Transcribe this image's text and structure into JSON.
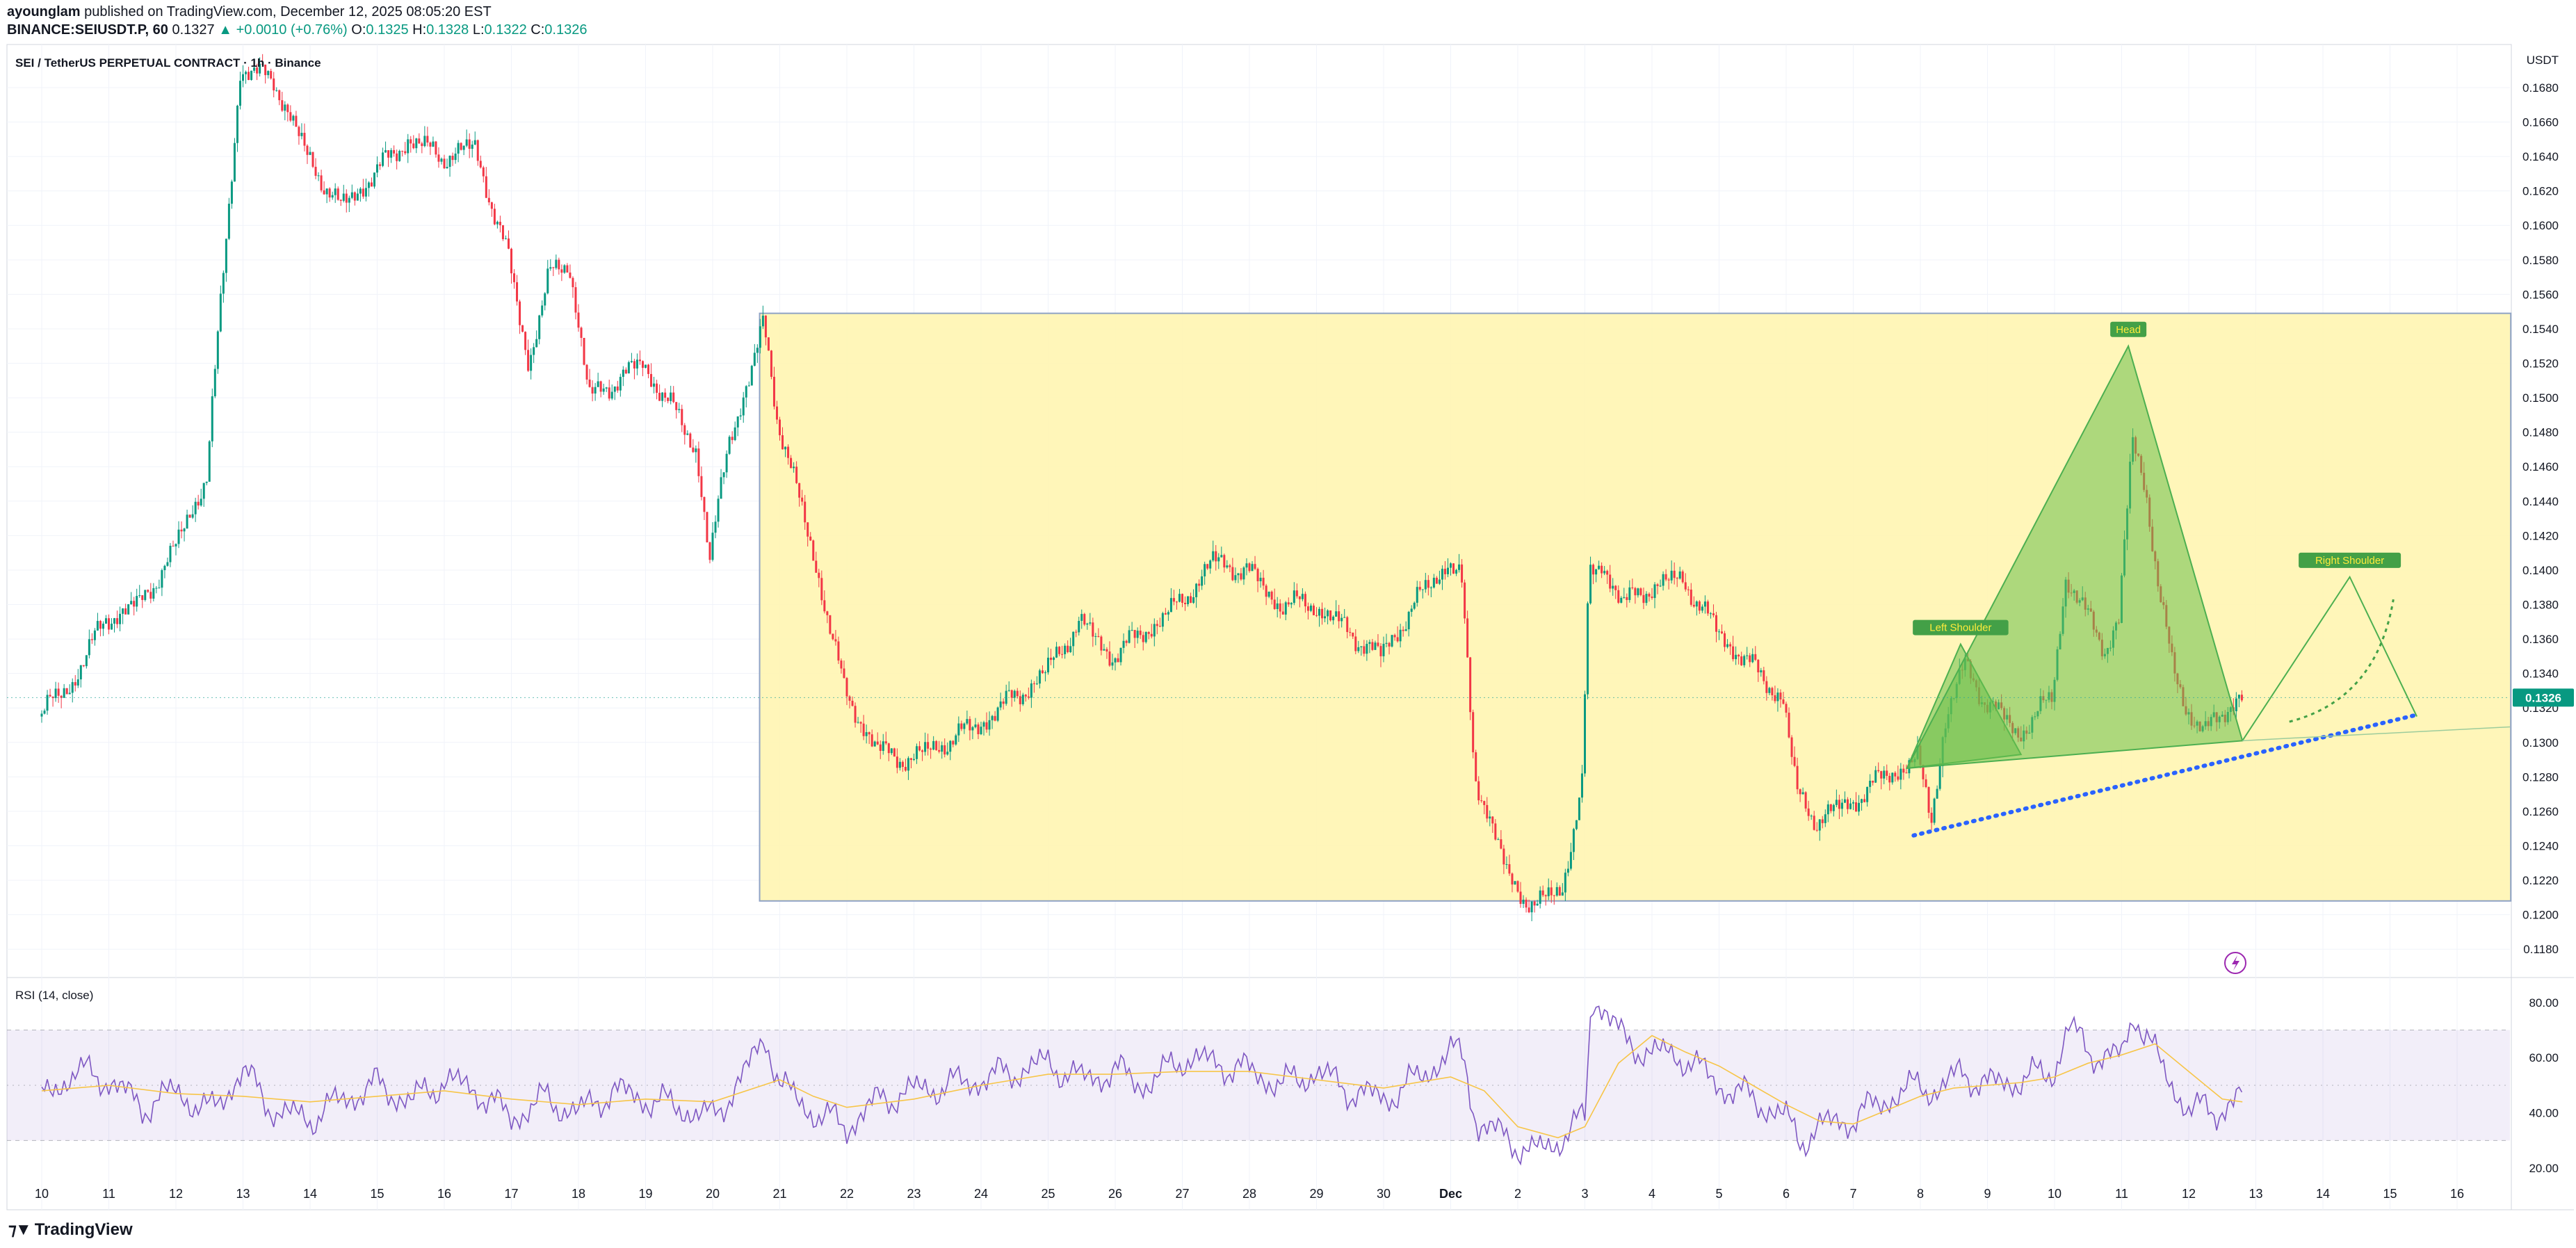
{
  "header": {
    "author": "ayounglam",
    "published_text": "published on TradingView.com, December 12, 2025 08:05:20 EST",
    "symbol": "BINANCE:SEIUSDT.P, 60",
    "last": "0.1327",
    "change": "+0.0010 (+0.76%)",
    "open_label": "O:",
    "open": "0.1325",
    "high_label": "H:",
    "high": "0.1328",
    "low_label": "L:",
    "low": "0.1322",
    "close_label": "C:",
    "close": "0.1326"
  },
  "legend": {
    "title": "SEI / TetherUS PERPETUAL CONTRACT · 1h · Binance"
  },
  "rsi_legend": {
    "title": "RSI (14, close)"
  },
  "footer": {
    "brand": "TradingView"
  },
  "colors": {
    "up": "#089981",
    "down": "#f23645",
    "rsi_line": "#7e57c2",
    "rsi_ma": "#f7c548",
    "range_box": "#fff5b1",
    "pattern_fill": "#6abf4b",
    "trendline": "#2962ff"
  },
  "chart_data": [
    {
      "type": "candlestick",
      "currency": "USDT",
      "ylim": [
        0.117,
        0.1705
      ],
      "y_ticks": [
        "0.1180",
        "0.1200",
        "0.1220",
        "0.1240",
        "0.1260",
        "0.1280",
        "0.1300",
        "0.1320",
        "0.1340",
        "0.1360",
        "0.1380",
        "0.1400",
        "0.1420",
        "0.1440",
        "0.1460",
        "0.1480",
        "0.1500",
        "0.1520",
        "0.1540",
        "0.1560",
        "0.1580",
        "0.1600",
        "0.1620",
        "0.1640",
        "0.1660",
        "0.1680"
      ],
      "x_ticks": [
        "10",
        "11",
        "12",
        "13",
        "14",
        "15",
        "16",
        "17",
        "18",
        "19",
        "20",
        "21",
        "22",
        "23",
        "24",
        "25",
        "26",
        "27",
        "28",
        "29",
        "30",
        "Dec",
        "2",
        "3",
        "4",
        "5",
        "6",
        "7",
        "8",
        "9",
        "10",
        "11",
        "12",
        "13",
        "14",
        "15",
        "16"
      ],
      "last_price": "0.1326",
      "path": [
        [
          10.0,
          0.1315
        ],
        [
          10.5,
          0.1335
        ],
        [
          11.0,
          0.1372
        ],
        [
          11.5,
          0.138
        ],
        [
          12.0,
          0.141
        ],
        [
          12.5,
          0.1455
        ],
        [
          13.0,
          0.169
        ],
        [
          13.5,
          0.1685
        ],
        [
          14.0,
          0.164
        ],
        [
          14.5,
          0.161
        ],
        [
          15.0,
          0.163
        ],
        [
          15.5,
          0.165
        ],
        [
          16.0,
          0.164
        ],
        [
          16.5,
          0.1645
        ],
        [
          17.0,
          0.158
        ],
        [
          17.3,
          0.152
        ],
        [
          17.6,
          0.157
        ],
        [
          17.9,
          0.158
        ],
        [
          18.2,
          0.15
        ],
        [
          18.6,
          0.151
        ],
        [
          19.0,
          0.152
        ],
        [
          19.5,
          0.149
        ],
        [
          19.8,
          0.147
        ],
        [
          20.0,
          0.1405
        ],
        [
          20.3,
          0.148
        ],
        [
          20.6,
          0.151
        ],
        [
          20.8,
          0.1545
        ],
        [
          21.0,
          0.149
        ],
        [
          21.3,
          0.1445
        ],
        [
          21.6,
          0.14
        ],
        [
          22.0,
          0.133
        ],
        [
          22.5,
          0.1295
        ],
        [
          23.0,
          0.129
        ],
        [
          23.5,
          0.13
        ],
        [
          24.0,
          0.131
        ],
        [
          24.5,
          0.1325
        ],
        [
          25.0,
          0.134
        ],
        [
          25.5,
          0.137
        ],
        [
          26.0,
          0.135
        ],
        [
          26.5,
          0.1365
        ],
        [
          27.0,
          0.138
        ],
        [
          27.5,
          0.1405
        ],
        [
          28.0,
          0.14
        ],
        [
          28.5,
          0.138
        ],
        [
          29.0,
          0.138
        ],
        [
          29.5,
          0.1365
        ],
        [
          30.0,
          0.135
        ],
        [
          30.5,
          0.138
        ],
        [
          31.0,
          0.1405
        ],
        [
          31.2,
          0.1395
        ],
        [
          31.4,
          0.128
        ],
        [
          31.6,
          0.126
        ],
        [
          31.9,
          0.122
        ],
        [
          32.3,
          0.1205
        ],
        [
          32.7,
          0.1215
        ],
        [
          33.0,
          0.1275
        ],
        [
          33.1,
          0.1395
        ],
        [
          33.3,
          0.1405
        ],
        [
          33.6,
          0.138
        ],
        [
          34.0,
          0.139
        ],
        [
          34.5,
          0.1395
        ],
        [
          35.0,
          0.1365
        ],
        [
          35.5,
          0.1345
        ],
        [
          36.0,
          0.1325
        ],
        [
          36.2,
          0.127
        ],
        [
          36.5,
          0.1255
        ],
        [
          37.0,
          0.1265
        ],
        [
          37.5,
          0.128
        ],
        [
          38.0,
          0.129
        ],
        [
          38.2,
          0.1255
        ],
        [
          38.4,
          0.131
        ],
        [
          38.7,
          0.1345
        ],
        [
          39.0,
          0.1325
        ],
        [
          39.5,
          0.1305
        ],
        [
          40.0,
          0.1325
        ],
        [
          40.2,
          0.1395
        ],
        [
          40.5,
          0.1375
        ],
        [
          40.8,
          0.1355
        ],
        [
          41.0,
          0.137
        ],
        [
          41.2,
          0.1475
        ],
        [
          41.4,
          0.145
        ],
        [
          41.6,
          0.1385
        ],
        [
          41.8,
          0.1345
        ],
        [
          42.0,
          0.132
        ],
        [
          42.3,
          0.1305
        ],
        [
          42.6,
          0.132
        ],
        [
          42.8,
          0.1327
        ]
      ],
      "annotations": [
        "Left Shoulder",
        "Head",
        "Right Shoulder"
      ]
    },
    {
      "type": "line",
      "title": "RSI (14, close)",
      "ylim": [
        15,
        88
      ],
      "y_ticks": [
        "20.00",
        "40.00",
        "60.00",
        "80.00"
      ],
      "levels": [
        30,
        50,
        70
      ],
      "path": [
        [
          10.0,
          45
        ],
        [
          10.5,
          55
        ],
        [
          11.0,
          52
        ],
        [
          11.5,
          42
        ],
        [
          12.0,
          48
        ],
        [
          12.5,
          40
        ],
        [
          13.0,
          55
        ],
        [
          13.5,
          40
        ],
        [
          14.0,
          38
        ],
        [
          14.5,
          45
        ],
        [
          15.0,
          50
        ],
        [
          15.5,
          44
        ],
        [
          16.0,
          52
        ],
        [
          16.5,
          48
        ],
        [
          17.0,
          38
        ],
        [
          17.5,
          45
        ],
        [
          18.0,
          40
        ],
        [
          18.5,
          48
        ],
        [
          19.0,
          45
        ],
        [
          19.5,
          42
        ],
        [
          20.0,
          38
        ],
        [
          20.5,
          55
        ],
        [
          20.8,
          68
        ],
        [
          21.0,
          50
        ],
        [
          21.5,
          40
        ],
        [
          22.0,
          35
        ],
        [
          22.5,
          45
        ],
        [
          23.0,
          48
        ],
        [
          23.5,
          50
        ],
        [
          24.0,
          52
        ],
        [
          24.5,
          55
        ],
        [
          25.0,
          58
        ],
        [
          25.5,
          52
        ],
        [
          26.0,
          55
        ],
        [
          26.5,
          50
        ],
        [
          27.0,
          60
        ],
        [
          27.5,
          58
        ],
        [
          28.0,
          55
        ],
        [
          28.5,
          50
        ],
        [
          29.0,
          55
        ],
        [
          29.5,
          48
        ],
        [
          30.0,
          45
        ],
        [
          30.5,
          52
        ],
        [
          31.0,
          62
        ],
        [
          31.2,
          60
        ],
        [
          31.4,
          35
        ],
        [
          31.8,
          32
        ],
        [
          32.2,
          25
        ],
        [
          32.6,
          30
        ],
        [
          33.0,
          38
        ],
        [
          33.1,
          82
        ],
        [
          33.3,
          78
        ],
        [
          33.6,
          65
        ],
        [
          34.0,
          62
        ],
        [
          34.5,
          60
        ],
        [
          35.0,
          50
        ],
        [
          35.5,
          45
        ],
        [
          36.0,
          38
        ],
        [
          36.2,
          30
        ],
        [
          36.5,
          35
        ],
        [
          37.0,
          38
        ],
        [
          37.5,
          45
        ],
        [
          38.0,
          50
        ],
        [
          38.3,
          48
        ],
        [
          38.6,
          55
        ],
        [
          39.0,
          50
        ],
        [
          39.5,
          52
        ],
        [
          40.0,
          55
        ],
        [
          40.2,
          72
        ],
        [
          40.5,
          62
        ],
        [
          41.0,
          60
        ],
        [
          41.2,
          76
        ],
        [
          41.4,
          68
        ],
        [
          41.6,
          55
        ],
        [
          41.8,
          48
        ],
        [
          42.0,
          42
        ],
        [
          42.4,
          40
        ],
        [
          42.8,
          47
        ]
      ],
      "ma_path": [
        [
          10.0,
          48
        ],
        [
          11.0,
          50
        ],
        [
          12.0,
          47
        ],
        [
          13.0,
          46
        ],
        [
          14.0,
          44
        ],
        [
          15.0,
          46
        ],
        [
          16.0,
          48
        ],
        [
          17.0,
          45
        ],
        [
          18.0,
          43
        ],
        [
          19.0,
          45
        ],
        [
          20.0,
          44
        ],
        [
          21.0,
          52
        ],
        [
          21.5,
          46
        ],
        [
          22.0,
          42
        ],
        [
          23.0,
          45
        ],
        [
          24.0,
          50
        ],
        [
          25.0,
          54
        ],
        [
          26.0,
          54
        ],
        [
          27.0,
          55
        ],
        [
          28.0,
          55
        ],
        [
          29.0,
          52
        ],
        [
          30.0,
          49
        ],
        [
          31.0,
          53
        ],
        [
          31.5,
          48
        ],
        [
          32.0,
          35
        ],
        [
          32.6,
          31
        ],
        [
          33.0,
          35
        ],
        [
          33.5,
          58
        ],
        [
          34.0,
          68
        ],
        [
          34.5,
          62
        ],
        [
          35.0,
          57
        ],
        [
          35.5,
          50
        ],
        [
          36.0,
          43
        ],
        [
          36.5,
          37
        ],
        [
          37.0,
          36
        ],
        [
          37.5,
          41
        ],
        [
          38.0,
          46
        ],
        [
          38.5,
          49
        ],
        [
          39.0,
          50
        ],
        [
          39.5,
          51
        ],
        [
          40.0,
          53
        ],
        [
          40.5,
          58
        ],
        [
          41.0,
          61
        ],
        [
          41.5,
          65
        ],
        [
          42.0,
          55
        ],
        [
          42.5,
          45
        ],
        [
          42.8,
          44
        ]
      ]
    }
  ]
}
